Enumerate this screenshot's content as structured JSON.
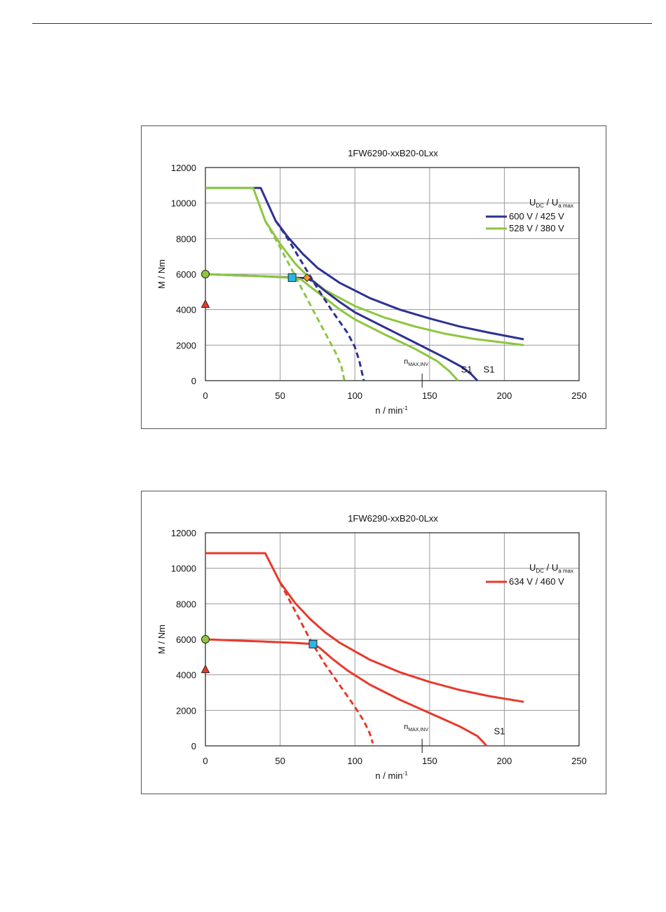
{
  "chart_data": [
    {
      "type": "line",
      "title": "1FW6290-xxB20-0Lxx",
      "xlabel": "n / min",
      "xlabel_sup": "-1",
      "ylabel": "M / Nm",
      "xlim": [
        0,
        250
      ],
      "ylim": [
        0,
        12000
      ],
      "xticks": [
        "0",
        "50",
        "100",
        "150",
        "200",
        "250"
      ],
      "yticks": [
        "0",
        "2000",
        "4000",
        "6000",
        "8000",
        "10000",
        "12000"
      ],
      "grid": true,
      "legend_position": "top-right",
      "legend_header": {
        "u_dc": "U",
        "u_dc_sub": "DC",
        "sep": "/",
        "u_a": "U",
        "u_a_sub": "a max"
      },
      "series": [
        {
          "name": "600 V / 425 V",
          "color": "#2e3192",
          "style": "solid",
          "x": [
            0,
            37,
            47,
            55,
            65,
            75,
            90,
            110,
            130,
            150,
            170,
            190,
            213
          ],
          "y": [
            10850,
            10850,
            9000,
            8100,
            7150,
            6350,
            5500,
            4650,
            4000,
            3500,
            3050,
            2700,
            2330
          ]
        },
        {
          "name": "528 V / 380 V",
          "color": "#8dc63f",
          "style": "solid",
          "x": [
            0,
            32,
            40,
            50,
            60,
            70,
            80,
            100,
            120,
            140,
            160,
            180,
            213
          ],
          "y": [
            10850,
            10850,
            9000,
            7700,
            6600,
            5750,
            5100,
            4200,
            3550,
            3050,
            2650,
            2350,
            2000
          ]
        },
        {
          "name": "",
          "color": "#2e3192",
          "style": "solid",
          "x": [
            0,
            20,
            40,
            60,
            67,
            72,
            80,
            90,
            100,
            120,
            140,
            160,
            172,
            178,
            182
          ],
          "y": [
            6000,
            5930,
            5870,
            5800,
            5770,
            5600,
            5050,
            4420,
            3850,
            3000,
            2150,
            1300,
            750,
            350,
            0
          ]
        },
        {
          "name": "",
          "color": "#8dc63f",
          "style": "solid",
          "x": [
            0,
            20,
            40,
            60,
            64,
            70,
            80,
            90,
            100,
            120,
            140,
            155,
            163,
            169
          ],
          "y": [
            6000,
            5930,
            5870,
            5780,
            5700,
            5300,
            4650,
            4000,
            3450,
            2600,
            1800,
            1100,
            550,
            0
          ]
        },
        {
          "name": "",
          "color": "#2e3192",
          "style": "dashed",
          "x": [
            47,
            55,
            65,
            75,
            85,
            95,
            100,
            103,
            106
          ],
          "y": [
            9000,
            8000,
            6600,
            5200,
            3900,
            2700,
            1900,
            1100,
            0
          ]
        },
        {
          "name": "",
          "color": "#8dc63f",
          "style": "dashed",
          "x": [
            40,
            50,
            60,
            70,
            80,
            87,
            91,
            93
          ],
          "y": [
            9000,
            7500,
            5900,
            4300,
            2700,
            1600,
            800,
            0
          ]
        }
      ],
      "markers": [
        {
          "shape": "circle",
          "color": "#8dc63f",
          "x": 0,
          "y": 6000
        },
        {
          "shape": "triangle",
          "color": "#e8392b",
          "x": 0,
          "y": 4300
        },
        {
          "shape": "square",
          "color": "#29b6e8",
          "x": 58,
          "y": 5800
        },
        {
          "shape": "diamond",
          "color": "#f7941d",
          "x": 68,
          "y": 5800
        }
      ],
      "annotations": {
        "nmax_main": "n",
        "nmax_sub": "MAX,INV",
        "nmax_x": 145,
        "s1_labels": [
          {
            "text": "S1",
            "x": 171,
            "y": 300
          },
          {
            "text": "S1",
            "x": 186,
            "y": 300
          }
        ]
      }
    },
    {
      "type": "line",
      "title": "1FW6290-xxB20-0Lxx",
      "xlabel": "n / min",
      "xlabel_sup": "-1",
      "ylabel": "M / Nm",
      "xlim": [
        0,
        250
      ],
      "ylim": [
        0,
        12000
      ],
      "xticks": [
        "0",
        "50",
        "100",
        "150",
        "200",
        "250"
      ],
      "yticks": [
        "0",
        "2000",
        "4000",
        "6000",
        "8000",
        "10000",
        "12000"
      ],
      "grid": true,
      "legend_position": "top-right",
      "legend_header": {
        "u_dc": "U",
        "u_dc_sub": "DC",
        "sep": "/",
        "u_a": "U",
        "u_a_sub": "a max"
      },
      "series": [
        {
          "name": "634 V / 460 V",
          "color": "#e8392b",
          "style": "solid",
          "x": [
            0,
            40,
            50,
            60,
            70,
            80,
            90,
            110,
            130,
            150,
            170,
            190,
            213
          ],
          "y": [
            10850,
            10850,
            9200,
            8050,
            7150,
            6400,
            5800,
            4850,
            4150,
            3600,
            3150,
            2800,
            2480
          ]
        },
        {
          "name": "",
          "color": "#e8392b",
          "style": "solid",
          "x": [
            0,
            20,
            40,
            60,
            72,
            76,
            85,
            95,
            110,
            130,
            150,
            170,
            182,
            186,
            188
          ],
          "y": [
            6000,
            5930,
            5870,
            5800,
            5730,
            5550,
            4900,
            4250,
            3450,
            2600,
            1850,
            1100,
            550,
            200,
            0
          ]
        },
        {
          "name": "",
          "color": "#e8392b",
          "style": "dashed",
          "x": [
            50,
            60,
            70,
            80,
            90,
            100,
            106,
            110,
            112
          ],
          "y": [
            9200,
            7600,
            6000,
            4600,
            3400,
            2200,
            1400,
            700,
            150
          ]
        }
      ],
      "markers": [
        {
          "shape": "circle",
          "color": "#8dc63f",
          "x": 0,
          "y": 6000
        },
        {
          "shape": "triangle",
          "color": "#e8392b",
          "x": 0,
          "y": 4300
        },
        {
          "shape": "square",
          "color": "#29b6e8",
          "x": 72,
          "y": 5730
        }
      ],
      "annotations": {
        "nmax_main": "n",
        "nmax_sub": "MAX,INV",
        "nmax_x": 145,
        "s1_labels": [
          {
            "text": "S1",
            "x": 193,
            "y": 500
          }
        ]
      }
    }
  ]
}
